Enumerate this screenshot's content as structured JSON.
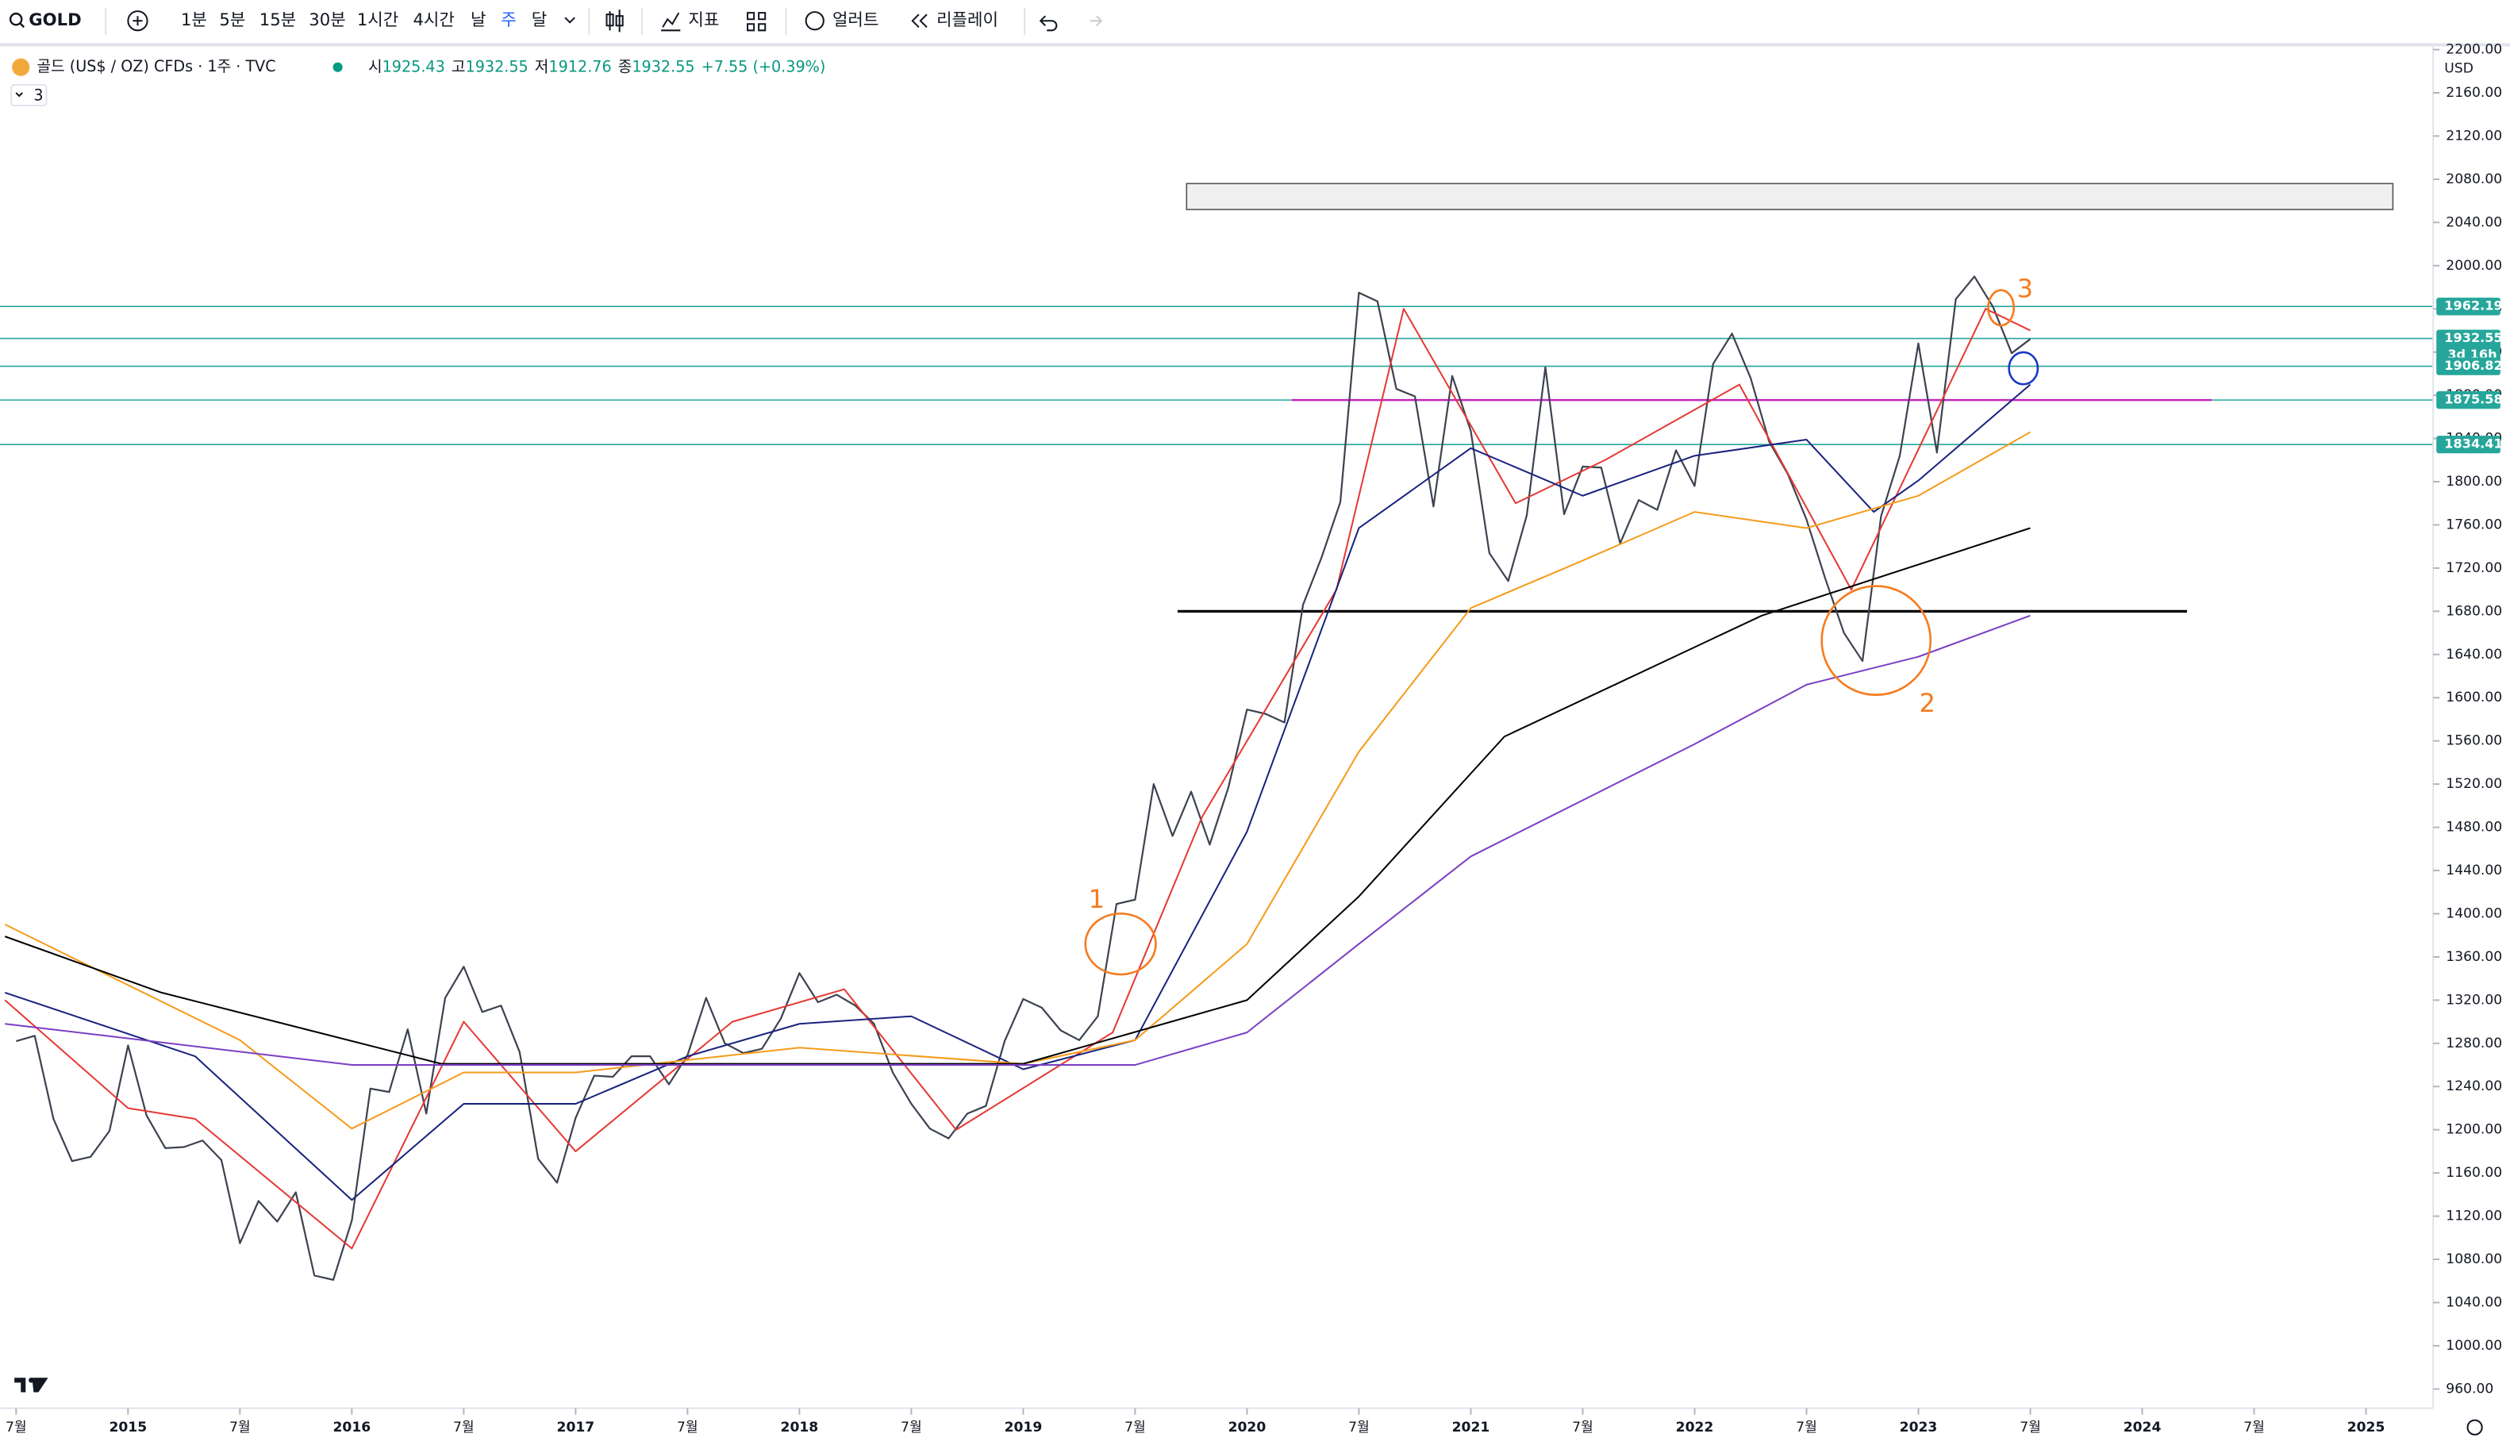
{
  "toolbar": {
    "symbol": "GOLD",
    "intervals": [
      "1분",
      "5분",
      "15분",
      "30분",
      "1시간",
      "4시간",
      "날",
      "주",
      "달"
    ],
    "active_interval": 7,
    "indicators": "지표",
    "alerts": "얼러트",
    "replay": "리플레이"
  },
  "legend": {
    "title": "골드 (US$ / OZ) CFDs · 1주 · TVC",
    "ohlc": [
      {
        "label": "시",
        "value": "1925.43"
      },
      {
        "label": "고",
        "value": "1932.55"
      },
      {
        "label": "저",
        "value": "1912.76"
      },
      {
        "label": "종",
        "value": "1932.55"
      }
    ],
    "change": "+7.55 (+0.39%)",
    "indicator_count": "3"
  },
  "currency": "USD",
  "chart_data": {
    "type": "line",
    "xlim": [
      2014.428,
      2025.3
    ],
    "ylim": [
      942.2,
      2201.5
    ],
    "xticks": [
      {
        "value": 2014.5,
        "label": "7월"
      },
      2015,
      {
        "value": 2015.5,
        "label": "7월"
      },
      2016,
      {
        "value": 2016.5,
        "label": "7월"
      },
      2017,
      {
        "value": 2017.5,
        "label": "7월"
      },
      2018,
      {
        "value": 2018.5,
        "label": "7월"
      },
      2019,
      {
        "value": 2019.5,
        "label": "7월"
      },
      2020,
      {
        "value": 2020.5,
        "label": "7월"
      },
      2021,
      {
        "value": 2021.5,
        "label": "7월"
      },
      2022,
      {
        "value": 2022.5,
        "label": "7월"
      },
      2023,
      {
        "value": 2023.5,
        "label": "7월"
      },
      2024,
      {
        "value": 2024.5,
        "label": "7월"
      },
      2025
    ],
    "yticks": [
      {
        "value": 2200,
        "label": "2200.00"
      },
      {
        "value": 2160,
        "label": "2160.00"
      },
      {
        "value": 2120,
        "label": "2120.00"
      },
      {
        "value": 2080,
        "label": "2080.00"
      },
      {
        "value": 2040,
        "label": "2040.00"
      },
      {
        "value": 2000,
        "label": "2000.00"
      },
      {
        "value": 1960,
        "label": "1960.00"
      },
      {
        "value": 1920,
        "label": "1920.00"
      },
      {
        "value": 1880,
        "label": "1880.00"
      },
      {
        "value": 1840,
        "label": "1840.00"
      },
      {
        "value": 1800,
        "label": "1800.00"
      },
      {
        "value": 1760,
        "label": "1760.00"
      },
      {
        "value": 1720,
        "label": "1720.00"
      },
      {
        "value": 1680,
        "label": "1680.00"
      },
      {
        "value": 1640,
        "label": "1640.00"
      },
      {
        "value": 1600,
        "label": "1600.00"
      },
      {
        "value": 1560,
        "label": "1560.00"
      },
      {
        "value": 1520,
        "label": "1520.00"
      },
      {
        "value": 1480,
        "label": "1480.00"
      },
      {
        "value": 1440,
        "label": "1440.00"
      },
      {
        "value": 1400,
        "label": "1400.00"
      },
      {
        "value": 1360,
        "label": "1360.00"
      },
      {
        "value": 1320,
        "label": "1320.00"
      },
      {
        "value": 1280,
        "label": "1280.00"
      },
      {
        "value": 1240,
        "label": "1240.00"
      },
      {
        "value": 1200,
        "label": "1200.00"
      },
      {
        "value": 1160,
        "label": "1160.00"
      },
      {
        "value": 1120,
        "label": "1120.00"
      },
      {
        "value": 1080,
        "label": "1080.00"
      },
      {
        "value": 1040,
        "label": "1040.00"
      },
      {
        "value": 1000,
        "label": "1000.00"
      },
      {
        "value": 960,
        "label": "960.00"
      }
    ],
    "series": [
      {
        "color": "#3d4350",
        "x": [
          2014.5,
          2014.583,
          2014.667,
          2014.75,
          2014.833,
          2014.917,
          2015,
          2015.083,
          2015.167,
          2015.25,
          2015.333,
          2015.417,
          2015.5,
          2015.583,
          2015.667,
          2015.75,
          2015.833,
          2015.917,
          2016,
          2016.083,
          2016.167,
          2016.25,
          2016.333,
          2016.417,
          2016.5,
          2016.583,
          2016.667,
          2016.75,
          2016.833,
          2016.917,
          2017,
          2017.083,
          2017.167,
          2017.25,
          2017.333,
          2017.417,
          2017.5,
          2017.583,
          2017.667,
          2017.75,
          2017.833,
          2017.917,
          2018,
          2018.083,
          2018.167,
          2018.25,
          2018.333,
          2018.417,
          2018.5,
          2018.583,
          2018.667,
          2018.75,
          2018.833,
          2018.917,
          2019,
          2019.083,
          2019.167,
          2019.25,
          2019.333,
          2019.417,
          2019.5,
          2019.583,
          2019.667,
          2019.75,
          2019.833,
          2019.917,
          2020,
          2020.083,
          2020.167,
          2020.25,
          2020.333,
          2020.417,
          2020.5,
          2020.583,
          2020.667,
          2020.75,
          2020.833,
          2020.917,
          2021,
          2021.083,
          2021.167,
          2021.25,
          2021.333,
          2021.417,
          2021.5,
          2021.583,
          2021.667,
          2021.75,
          2021.833,
          2021.917,
          2022,
          2022.083,
          2022.167,
          2022.25,
          2022.333,
          2022.417,
          2022.5,
          2022.583,
          2022.667,
          2022.75,
          2022.833,
          2022.917,
          2023,
          2023.083,
          2023.167,
          2023.25,
          2023.333,
          2023.417,
          2023.5
        ],
        "values": [
          1282,
          1287,
          1210,
          1171,
          1175,
          1199,
          1278,
          1213,
          1183,
          1184,
          1190,
          1172,
          1095,
          1134,
          1115,
          1142,
          1065,
          1061,
          1116,
          1238,
          1235,
          1293,
          1215,
          1322,
          1351,
          1309,
          1315,
          1272,
          1173,
          1151,
          1211,
          1250,
          1249,
          1268,
          1268,
          1242,
          1269,
          1322,
          1280,
          1271,
          1275,
          1303,
          1345,
          1318,
          1325,
          1315,
          1298,
          1253,
          1224,
          1201,
          1192,
          1215,
          1222,
          1282,
          1321,
          1313,
          1292,
          1283,
          1305,
          1409,
          1413,
          1520,
          1472,
          1513,
          1464,
          1517,
          1589,
          1585,
          1577,
          1686,
          1730,
          1781,
          1975,
          1967,
          1886,
          1879,
          1777,
          1898,
          1847,
          1734,
          1708,
          1769,
          1906,
          1770,
          1814,
          1813,
          1743,
          1783,
          1774,
          1829,
          1796,
          1909,
          1937,
          1896,
          1837,
          1807,
          1765,
          1711,
          1660,
          1634,
          1768,
          1824,
          1928,
          1827,
          1969,
          1990,
          1962,
          1919,
          1932
        ]
      },
      {
        "color": "#e53935",
        "x": [
          2014.45,
          2015,
          2015.3,
          2016,
          2016.5,
          2017,
          2017.7,
          2018.2,
          2018.7,
          2019.4,
          2019.8,
          2020.4,
          2020.7,
          2021.2,
          2021.6,
          2022.2,
          2022.7,
          2023.3,
          2023.5
        ],
        "values": [
          1320,
          1220,
          1210,
          1090,
          1300,
          1180,
          1300,
          1330,
          1200,
          1290,
          1490,
          1700,
          1960,
          1780,
          1820,
          1890,
          1700,
          1960,
          1940
        ]
      },
      {
        "color": "#1a237e",
        "x": [
          2014.45,
          2015.3,
          2016,
          2016.5,
          2017,
          2017.5,
          2018,
          2018.5,
          2019,
          2019.5,
          2020,
          2020.5,
          2021,
          2021.5,
          2022,
          2022.5,
          2022.8,
          2023,
          2023.5
        ],
        "values": [
          1327,
          1268,
          1135,
          1224,
          1224,
          1268,
          1298,
          1305,
          1256,
          1283,
          1476,
          1757,
          1831,
          1787,
          1824,
          1839,
          1772,
          1801,
          1890
        ]
      },
      {
        "color": "#f59c1a",
        "x": [
          2014.45,
          2015.5,
          2016,
          2016.5,
          2017,
          2018,
          2019,
          2019.5,
          2020,
          2020.5,
          2021,
          2021.5,
          2022,
          2022.5,
          2023,
          2023.5
        ],
        "values": [
          1390,
          1283,
          1201,
          1253,
          1253,
          1276,
          1261,
          1283,
          1372,
          1550,
          1683,
          1727,
          1772,
          1757,
          1787,
          1846
        ]
      },
      {
        "color": "#000000",
        "x": [
          2014.45,
          2015.15,
          2016.4,
          2019,
          2020,
          2020.5,
          2021.15,
          2022.3,
          2023.5
        ],
        "values": [
          1379,
          1327,
          1261,
          1261,
          1320,
          1416,
          1564,
          1676,
          1757
        ]
      },
      {
        "color": "#7b3fc4",
        "x": [
          2014.45,
          2016,
          2019.5,
          2020,
          2020.5,
          2021,
          2021.5,
          2022,
          2022.5,
          2023,
          2023.5
        ],
        "values": [
          1298,
          1260,
          1260,
          1290,
          1372,
          1453,
          1505,
          1557,
          1612,
          1638,
          1676
        ]
      }
    ],
    "price_lines": [
      {
        "value": 1962.19,
        "label": "1962.19",
        "color": "#26a69a"
      },
      {
        "value": 1932.55,
        "label": "1932.55",
        "color": "#26a69a",
        "countdown": "3d 16h"
      },
      {
        "value": 1906.82,
        "label": "1906.82",
        "color": "#26a69a"
      },
      {
        "value": 1875.58,
        "label": "1875.58",
        "color": "#26a69a"
      },
      {
        "value": 1834.41,
        "label": "1834.41",
        "color": "#26a69a"
      }
    ],
    "segments": [
      {
        "value": 1875.58,
        "x": [
          2020.2,
          2024.31
        ],
        "color": "#c026c0"
      },
      {
        "value": 1680,
        "x": [
          2019.69,
          2024.2
        ],
        "color": "#000000"
      }
    ],
    "box": {
      "x": [
        2019.73,
        2025.12
      ],
      "y": [
        2052,
        2076
      ]
    },
    "annotations": [
      {
        "text": "1",
        "x": 2019.435,
        "y": 1372
      },
      {
        "text": "2",
        "x": 2022.811,
        "y": 1653
      },
      {
        "text": "3",
        "x": 2023.369,
        "y": 1961
      },
      {
        "x": 2023.469,
        "y": 1905,
        "color": "#1a3bc4"
      }
    ]
  }
}
